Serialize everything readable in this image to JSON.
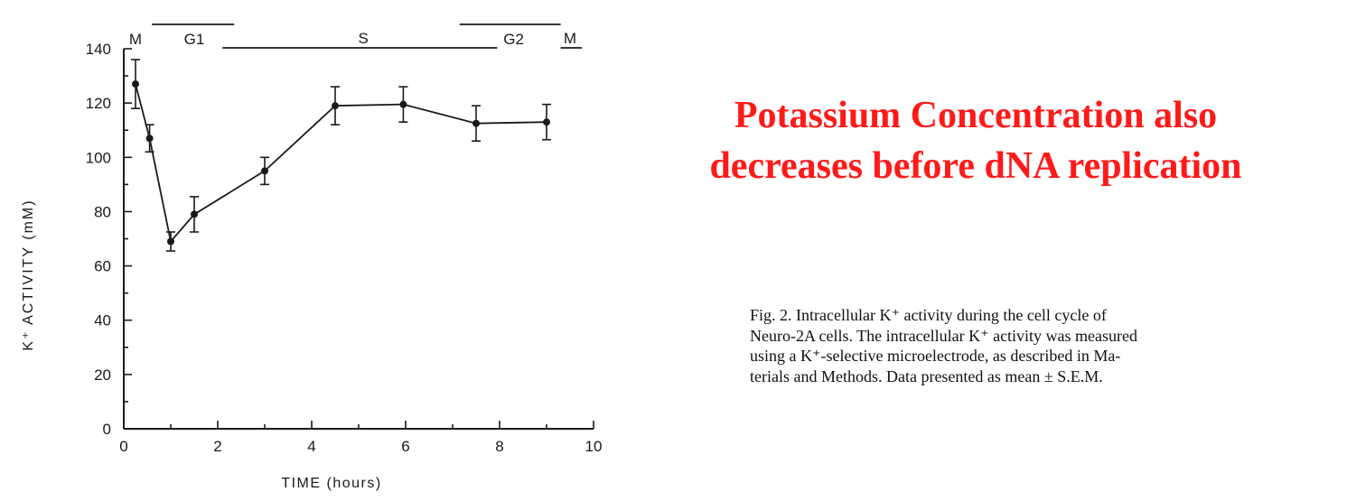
{
  "headline": {
    "line1": "Potassium Concentration also",
    "line2": "decreases before dNA replication",
    "color": "#ff1a1a"
  },
  "caption": {
    "lines": [
      "Fig. 2.   Intracellular K⁺ activity during the cell cycle of",
      "Neuro-2A cells. The intracellular K⁺ activity was measured",
      "using a K⁺-selective microelectrode, as described in Ma-",
      "terials and Methods. Data presented as mean ± S.E.M."
    ]
  },
  "chart_data": {
    "type": "line",
    "title": "",
    "xlabel": "TIME  (hours)",
    "ylabel": "K⁺  ACTIVITY  (mM)",
    "xlim": [
      0,
      10
    ],
    "ylim": [
      0,
      140
    ],
    "x_ticks": [
      "0",
      "2",
      "4",
      "6",
      "8",
      "10"
    ],
    "y_ticks": [
      "0",
      "20",
      "40",
      "60",
      "80",
      "100",
      "120",
      "140"
    ],
    "grid": false,
    "points": [
      {
        "x": 0.25,
        "y": 127,
        "err": 9
      },
      {
        "x": 0.55,
        "y": 107,
        "err": 5
      },
      {
        "x": 1.0,
        "y": 69,
        "err": 3.5
      },
      {
        "x": 1.5,
        "y": 79,
        "err": 6.5
      },
      {
        "x": 3.0,
        "y": 95,
        "err": 5
      },
      {
        "x": 4.5,
        "y": 119,
        "err": 7
      },
      {
        "x": 5.95,
        "y": 119.5,
        "err": 6.5
      },
      {
        "x": 7.5,
        "y": 112.5,
        "err": 6.5
      },
      {
        "x": 9.0,
        "y": 113,
        "err": 6.5
      }
    ],
    "phases": [
      {
        "label": "M",
        "x_start": 0.0,
        "x_end": 0.5,
        "row": "top",
        "has_line": false,
        "label_x": 0.25
      },
      {
        "label": "G1",
        "x_start": 0.6,
        "x_end": 2.35,
        "row": "top",
        "has_line": true,
        "label_x": 1.5
      },
      {
        "label": "S",
        "x_start": 2.1,
        "x_end": 7.95,
        "row": "bottom",
        "has_line": true,
        "label_x": 5.1
      },
      {
        "label": "G2",
        "x_start": 7.15,
        "x_end": 9.3,
        "row": "top",
        "has_line": true,
        "label_x": 8.3
      },
      {
        "label": "M",
        "x_start": 9.3,
        "x_end": 9.75,
        "row": "bottom",
        "has_line": true,
        "label_x": 9.5
      }
    ]
  }
}
